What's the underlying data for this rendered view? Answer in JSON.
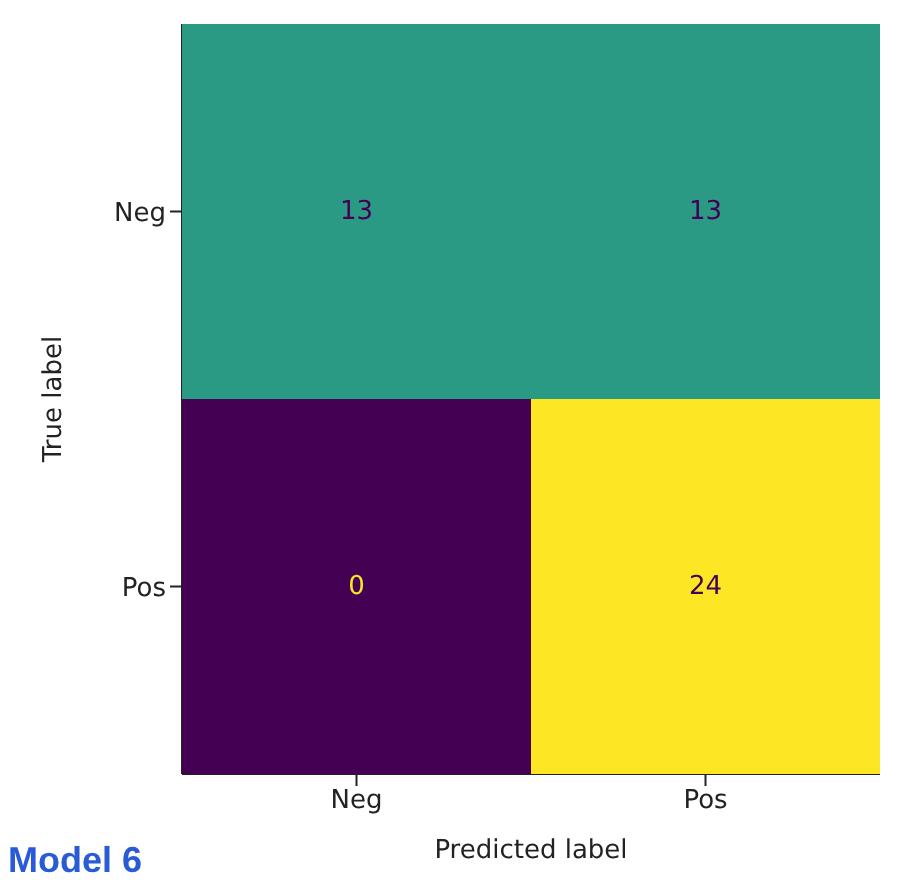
{
  "chart_data": {
    "type": "heatmap",
    "xlabel": "Predicted label",
    "ylabel": "True label",
    "categories": [
      "Neg",
      "Pos"
    ],
    "y_categories": [
      "Neg",
      "Pos"
    ],
    "cells": [
      [
        13,
        13
      ],
      [
        0,
        24
      ]
    ],
    "data_labels": true,
    "annotations": [
      "Model 6"
    ]
  }
}
